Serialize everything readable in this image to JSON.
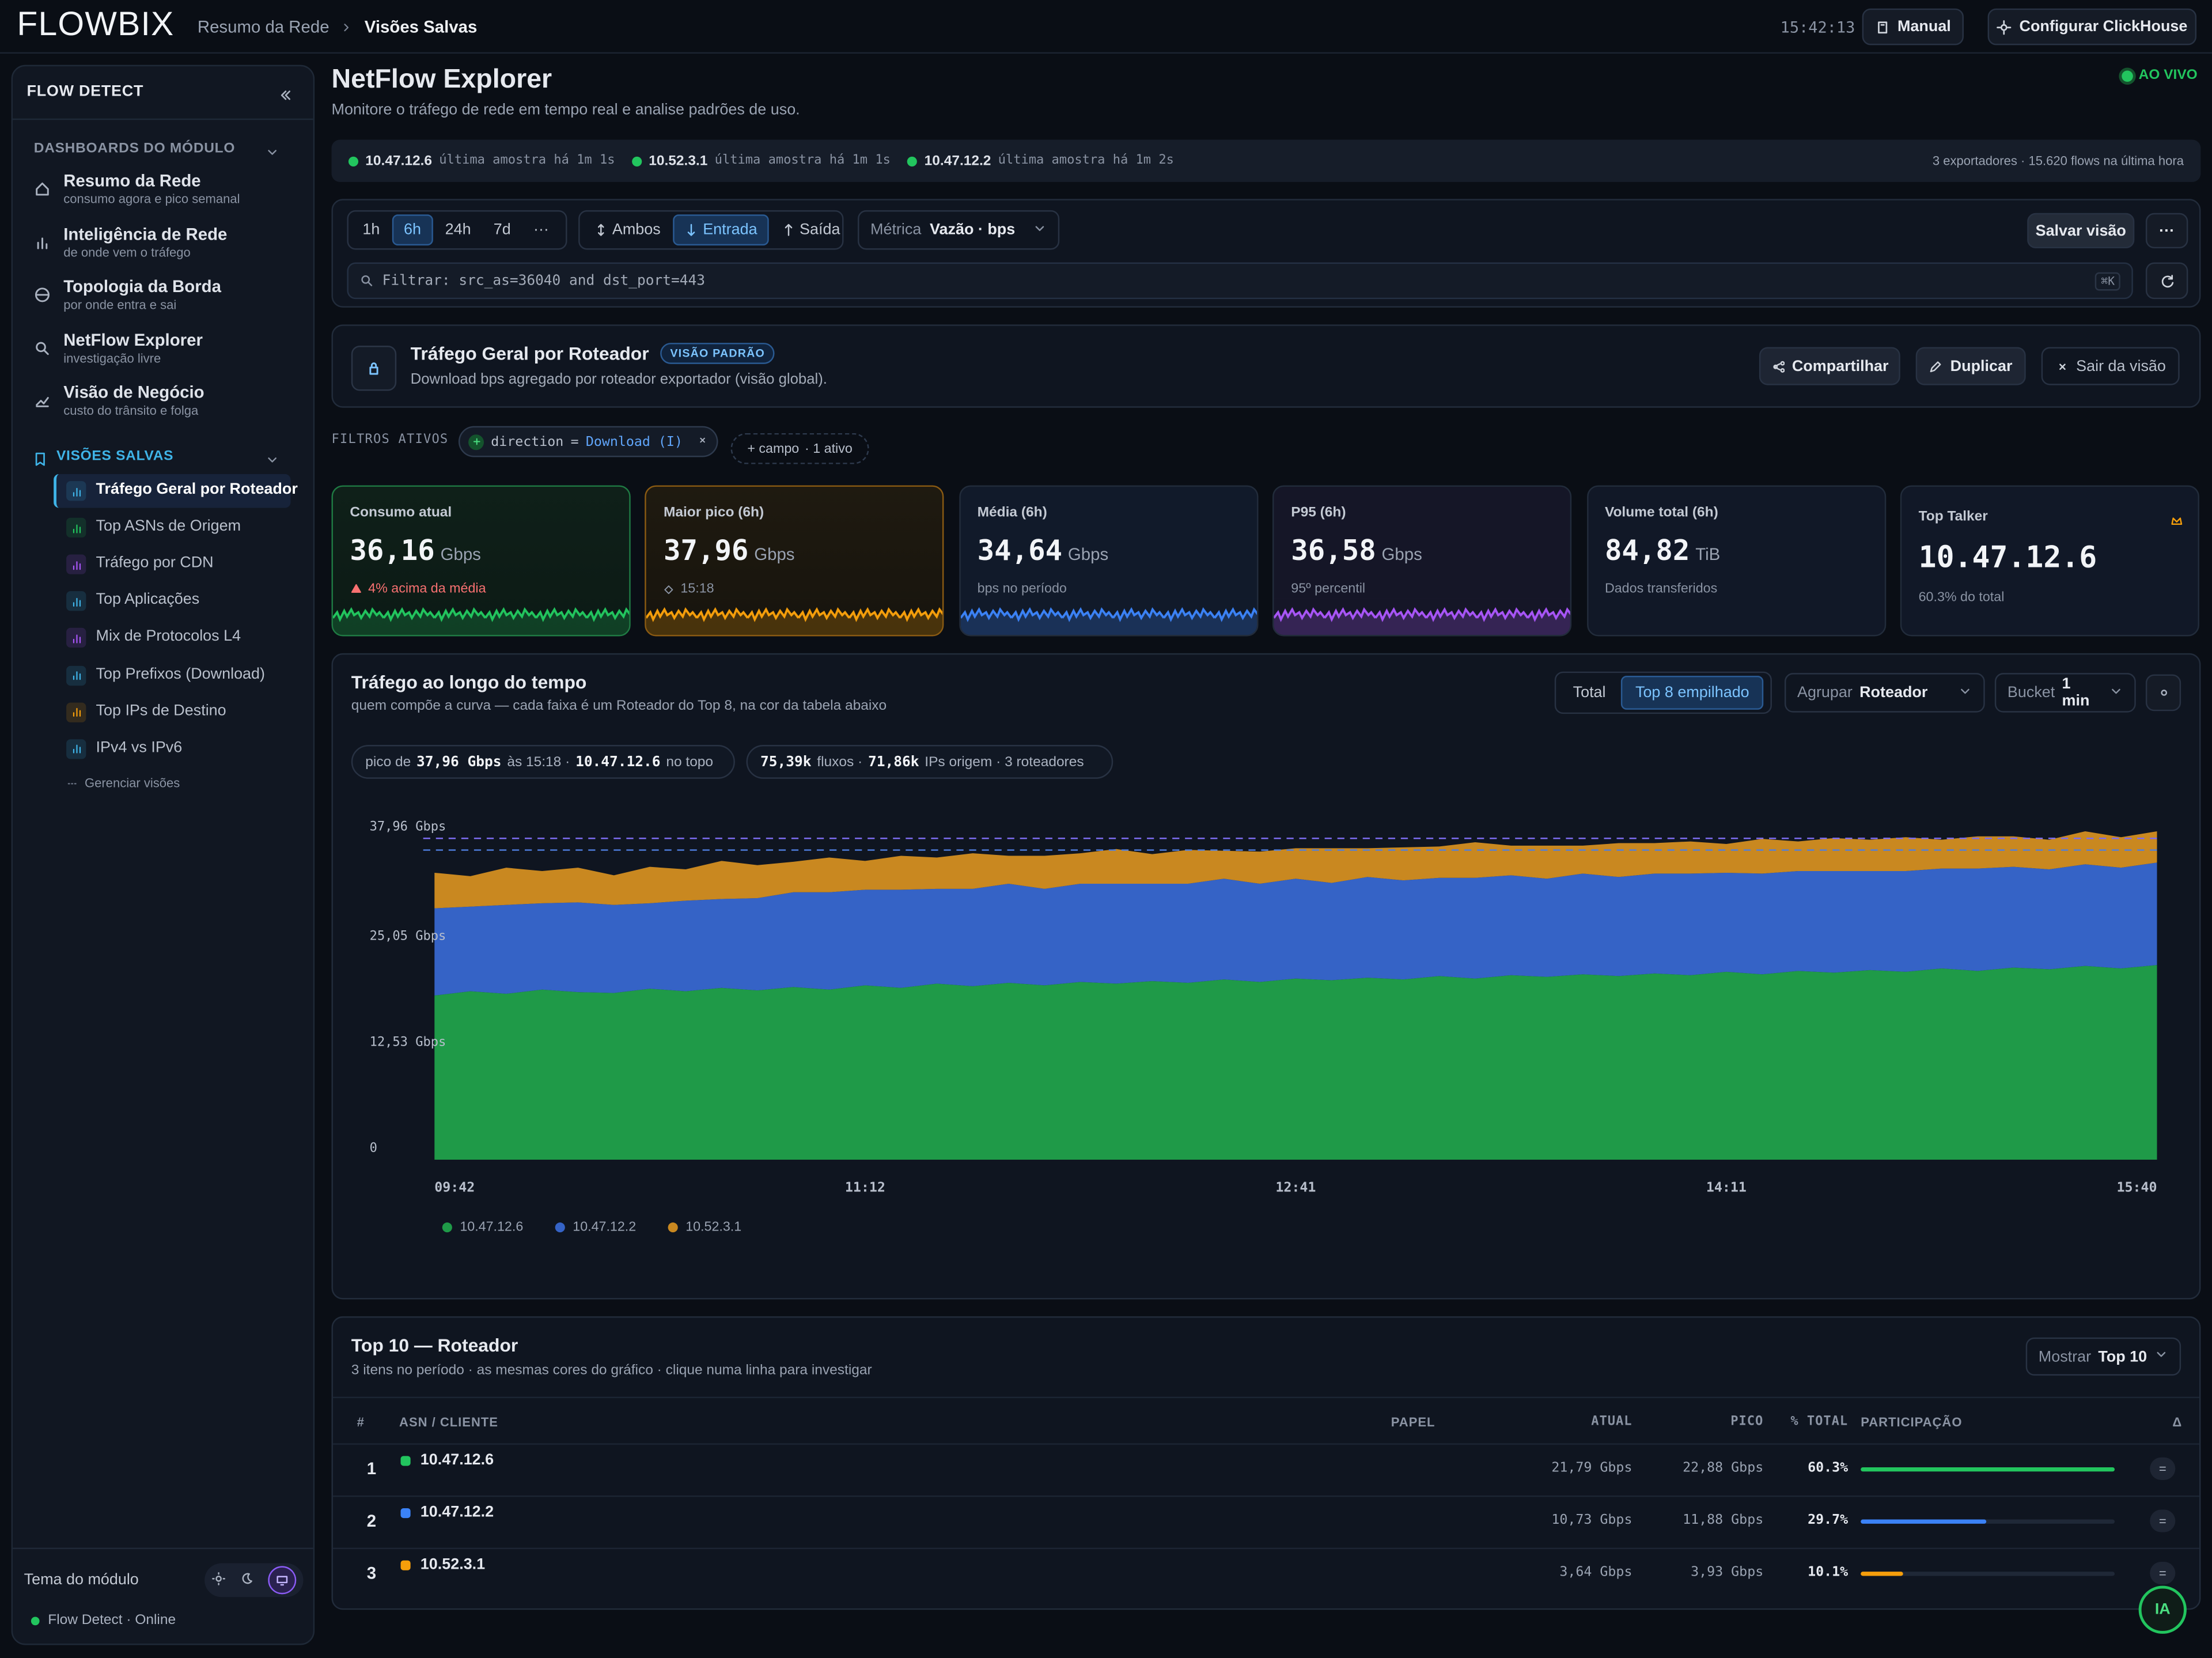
{
  "header": {
    "logo": "FLOWBIX",
    "breadcrumb": [
      "Resumo da Rede",
      "Visões Salvas"
    ],
    "time": "15:42:13",
    "buttons": [
      "Manual",
      "Configurar ClickHouse"
    ]
  },
  "sidebar": {
    "title": "FLOW DETECT",
    "dashboards_title": "DASHBOARDS DO MÓDULO",
    "dashboards": [
      {
        "label": "Resumo da Rede",
        "sub": "consumo agora e pico semanal"
      },
      {
        "label": "Inteligência de Rede",
        "sub": "de onde vem o tráfego"
      },
      {
        "label": "Topologia da Borda",
        "sub": "por onde entra e sai"
      },
      {
        "label": "NetFlow Explorer",
        "sub": "investigação livre"
      },
      {
        "label": "Visão de Negócio",
        "sub": "custo do trânsito e folga"
      }
    ],
    "saved_title": "VISÕES SALVAS",
    "saved": [
      "Tráfego Geral por Roteador",
      "Top ASNs de Origem",
      "Tráfego por CDN",
      "Top Aplicações",
      "Mix de Protocolos L4",
      "Top Prefixos (Download)",
      "Top IPs de Destino",
      "IPv4 vs IPv6"
    ],
    "manage": "Gerenciar visões",
    "theme": "Tema do módulo",
    "status": "Flow Detect · Online"
  },
  "page": {
    "title": "NetFlow Explorer",
    "subtitle": "Monitore o tráfego de rede em tempo real e analise padrões de uso.",
    "live": "AO VIVO"
  },
  "exporters": {
    "items": [
      {
        "ip": "10.47.12.6",
        "note": "última amostra há 1m 1s"
      },
      {
        "ip": "10.52.3.1",
        "note": "última amostra há 1m 1s"
      },
      {
        "ip": "10.47.12.2",
        "note": "última amostra há 1m 2s"
      }
    ],
    "summary": "3 exportadores · 15.620 flows na última hora"
  },
  "toolbar": {
    "ranges": [
      "1h",
      "6h",
      "24h",
      "7d",
      "···"
    ],
    "directions": [
      "Ambos",
      "Entrada",
      "Saída"
    ],
    "metric_label": "Métrica",
    "metric": "Vazão · bps",
    "save": "Salvar visão",
    "more": "···",
    "filter": "Filtrar: src_as=36040 and dst_port=443",
    "shortcut": "⌘K"
  },
  "view": {
    "title": "Tráfego Geral por Roteador",
    "badge": "VISÃO PADRÃO",
    "description": "Download bps agregado por roteador exportador (visão global).",
    "actions": [
      "Compartilhar",
      "Duplicar",
      "Sair da visão"
    ]
  },
  "filters": {
    "label": "FILTROS ATIVOS",
    "chip": {
      "field": "direction",
      "operator": "=",
      "value": "Download (I)"
    },
    "add": "+ campo",
    "count": "· 1 ativo"
  },
  "kpis": [
    {
      "label": "Consumo atual",
      "value": "36,16",
      "unit": "Gbps",
      "note": "4% acima da média"
    },
    {
      "label": "Maior pico (6h)",
      "value": "37,96",
      "unit": "Gbps",
      "note": "15:18"
    },
    {
      "label": "Média (6h)",
      "value": "34,64",
      "unit": "Gbps",
      "note": "bps no período"
    },
    {
      "label": "P95 (6h)",
      "value": "36,58",
      "unit": "Gbps",
      "note": "95º percentil"
    },
    {
      "label": "Volume total (6h)",
      "value": "84,82",
      "unit": "TiB",
      "note": "Dados transferidos"
    },
    {
      "label": "Top Talker",
      "value": "10.47.12.6",
      "note": "60.3% do total"
    }
  ],
  "panel": {
    "modes": [
      "Total",
      "Top 8 empilhado"
    ],
    "group_label": "Agrupar",
    "group": "Roteador",
    "bucket_label": "Bucket",
    "bucket": "1 min",
    "peak_pill": [
      "pico de",
      "37,96 Gbps",
      "às 15:18 ·",
      "10.47.12.6",
      "no topo"
    ],
    "stats_pill": [
      "75,39k",
      "fluxos ·",
      "71,86k",
      "IPs origem · 3 roteadores"
    ]
  },
  "chart_data": {
    "type": "stacked_area",
    "title": "Tráfego ao longo do tempo",
    "subtitle": "quem compõe a curva — cada faixa é um Roteador do Top 8, na cor da tabela abaixo",
    "categories": [
      "09:42",
      null,
      null,
      null,
      null,
      null,
      null,
      null,
      null,
      null,
      null,
      null,
      "11:12",
      null,
      null,
      null,
      null,
      null,
      null,
      null,
      null,
      null,
      null,
      null,
      "12:41",
      null,
      null,
      null,
      null,
      null,
      null,
      null,
      null,
      null,
      null,
      null,
      "14:11",
      null,
      null,
      null,
      null,
      null,
      null,
      null,
      null,
      null,
      null,
      null,
      "15:40"
    ],
    "series": [
      {
        "name": "10.47.12.6",
        "color": "#1f9a48",
        "values": [
          19.4,
          19.9,
          19.6,
          20.1,
          19.8,
          19.7,
          20.2,
          19.9,
          20.3,
          20.0,
          20.4,
          20.1,
          20.6,
          20.3,
          20.8,
          20.5,
          20.9,
          20.6,
          21.0,
          20.8,
          21.1,
          20.9,
          21.3,
          21.0,
          21.4,
          21.2,
          21.5,
          21.3,
          21.7,
          21.4,
          21.8,
          21.6,
          21.9,
          21.7,
          22.0,
          21.8,
          22.2,
          21.9,
          22.3,
          22.1,
          22.4,
          22.2,
          22.6,
          22.3,
          22.7,
          22.5,
          22.9,
          22.6,
          23.0
        ]
      },
      {
        "name": "10.47.12.2",
        "color": "#3563c6",
        "values": [
          10.3,
          10.0,
          10.5,
          10.2,
          10.6,
          10.4,
          10.1,
          10.7,
          10.5,
          10.9,
          11.2,
          11.5,
          11.3,
          11.6,
          11.2,
          11.5,
          11.7,
          11.4,
          11.6,
          11.8,
          11.5,
          11.7,
          11.9,
          11.6,
          11.8,
          11.5,
          11.9,
          11.7,
          11.6,
          11.9,
          11.8,
          11.6,
          11.9,
          11.7,
          11.8,
          12.0,
          11.7,
          11.9,
          11.8,
          12.0,
          11.7,
          11.9,
          11.8,
          12.1,
          11.9,
          11.8,
          12.0,
          11.9,
          12.1
        ]
      },
      {
        "name": "10.52.3.1",
        "color": "#c98820",
        "values": [
          4.2,
          3.6,
          4.4,
          3.8,
          4.1,
          3.5,
          4.3,
          3.7,
          4.5,
          3.9,
          3.6,
          4.1,
          3.4,
          4.0,
          3.7,
          4.2,
          3.3,
          3.9,
          3.6,
          4.1,
          3.5,
          4.0,
          3.3,
          3.8,
          3.6,
          4.1,
          3.4,
          3.9,
          3.7,
          4.2,
          3.5,
          3.9,
          3.3,
          4.0,
          3.6,
          3.8,
          3.4,
          4.1,
          3.5,
          3.9,
          3.7,
          4.0,
          3.4,
          3.8,
          3.6,
          3.5,
          3.9,
          3.6,
          3.7
        ]
      }
    ],
    "ylim": [
      0,
      40
    ],
    "yticks": [
      0,
      {
        "value": 12.53,
        "label": "12,53 Gbps"
      },
      {
        "value": 25.05,
        "label": "25,05 Gbps"
      },
      {
        "value": 37.96,
        "label": "37,96 Gbps"
      }
    ],
    "reference_lines": [
      {
        "value": 37.96,
        "color": "#7c6cf0"
      },
      {
        "value": 36.58,
        "color": "#4f7fe0"
      }
    ],
    "grid": false
  },
  "table": {
    "title": "Top 10 — Roteador",
    "subtitle": "3 itens no período · as mesmas cores do gráfico · clique numa linha para investigar",
    "show_label": "Mostrar",
    "show": "Top 10",
    "columns": [
      "#",
      "ASN / CLIENTE",
      "PAPEL",
      "ATUAL",
      "PICO",
      "% TOTAL",
      "PARTICIPAÇÃO",
      "Δ"
    ],
    "rows": [
      {
        "rank": "1",
        "name": "10.47.12.6",
        "color": "#22c55e",
        "current": "21,79 Gbps",
        "peak": "22,88 Gbps",
        "share": 60.3,
        "share_label": "60.3%",
        "delta": "="
      },
      {
        "rank": "2",
        "name": "10.47.12.2",
        "color": "#3b82f6",
        "current": "10,73 Gbps",
        "peak": "11,88 Gbps",
        "share": 29.7,
        "share_label": "29.7%",
        "delta": "="
      },
      {
        "rank": "3",
        "name": "10.52.3.1",
        "color": "#f59e0b",
        "current": "3,64 Gbps",
        "peak": "3,93 Gbps",
        "share": 10.1,
        "share_label": "10.1%",
        "delta": "="
      }
    ]
  },
  "assistant": "IA"
}
